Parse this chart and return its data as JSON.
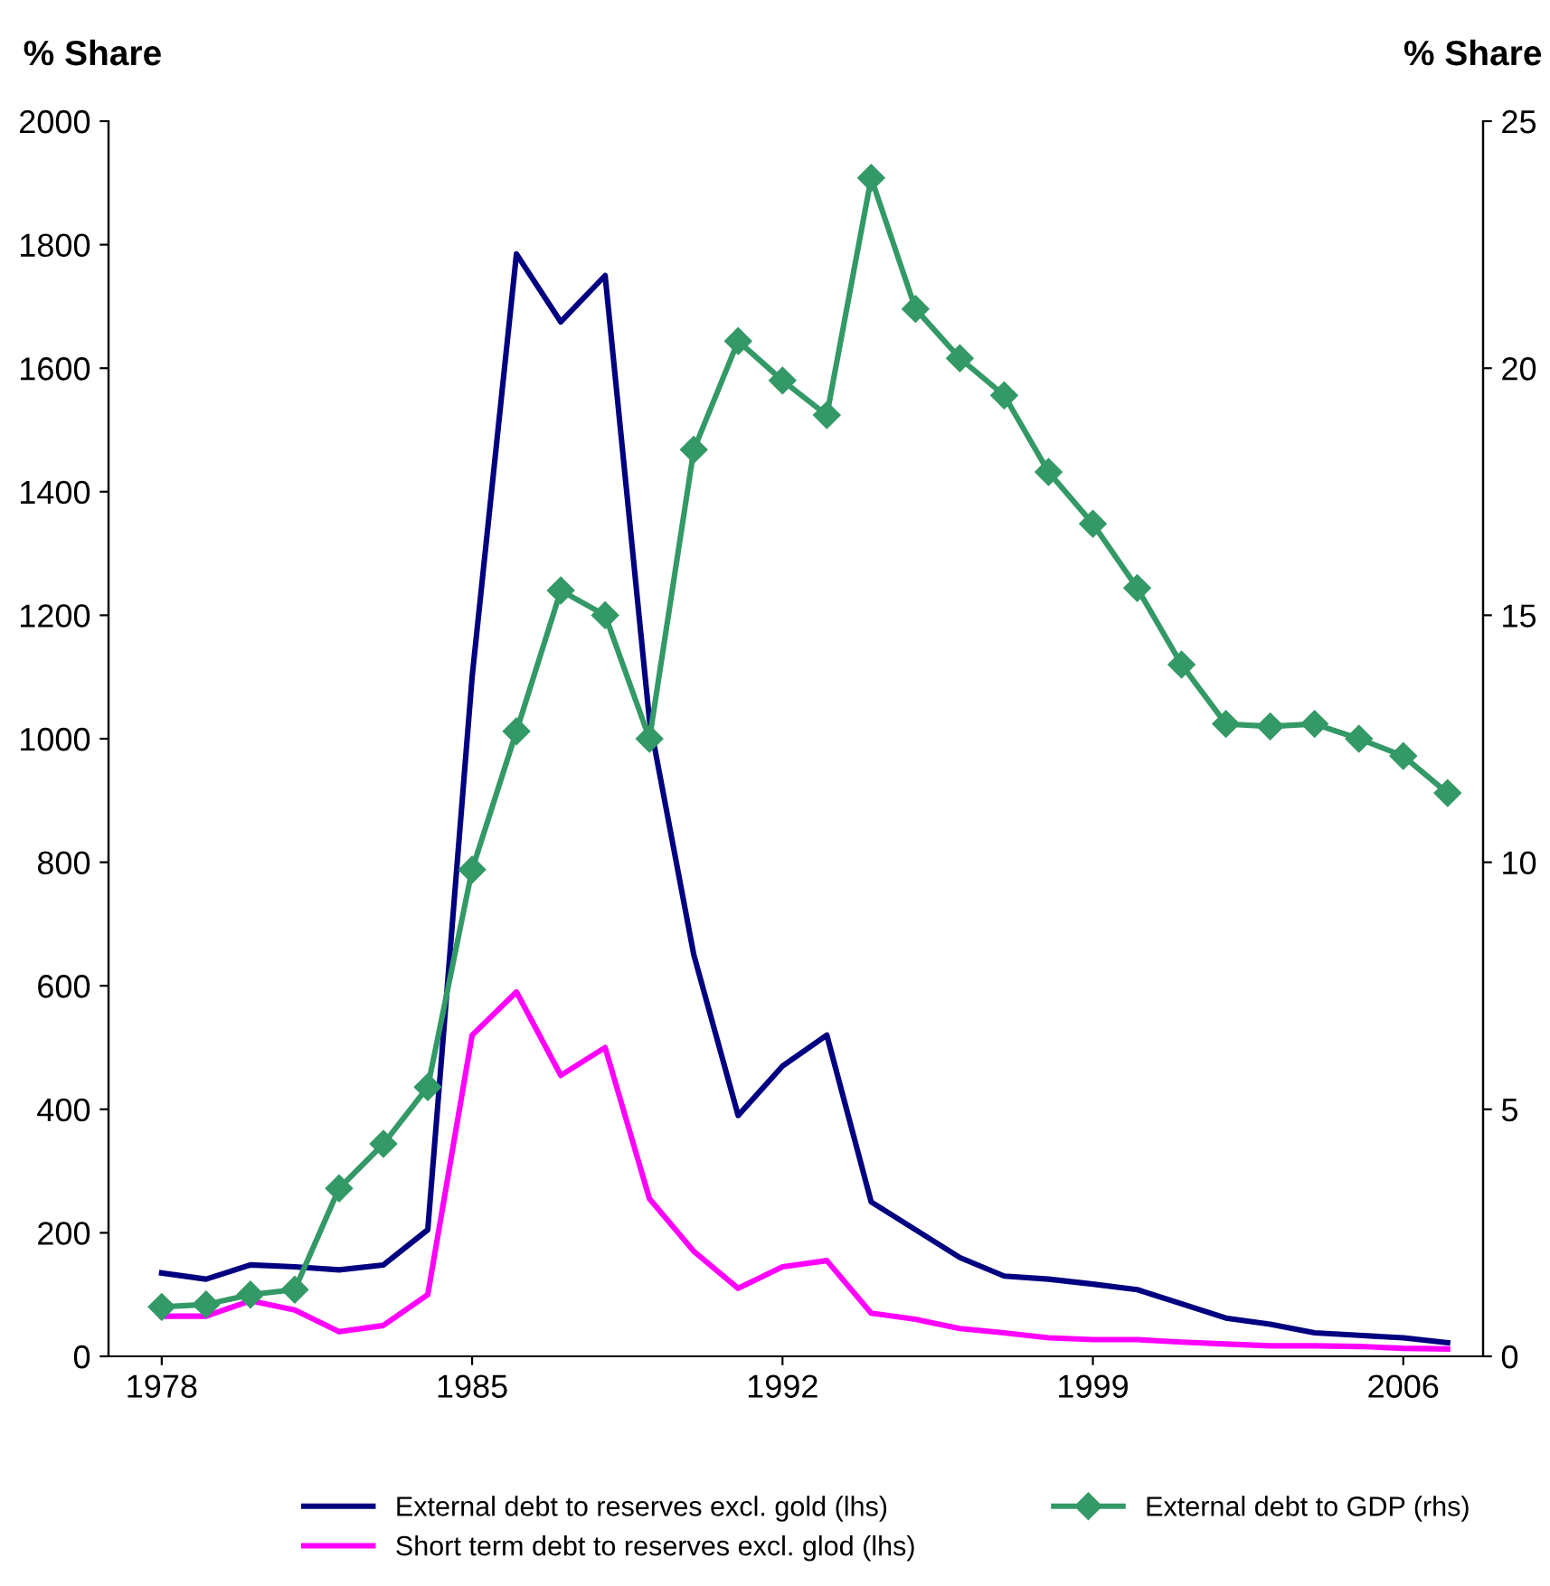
{
  "chart_data": {
    "type": "line",
    "ylabel": "% Share",
    "y2label": "% Share",
    "x": [
      1978,
      1979,
      1980,
      1981,
      1982,
      1983,
      1984,
      1985,
      1986,
      1987,
      1988,
      1989,
      1990,
      1991,
      1992,
      1993,
      1994,
      1995,
      1996,
      1997,
      1998,
      1999,
      2000,
      2001,
      2002,
      2003,
      2004,
      2005,
      2006,
      2007
    ],
    "xlim": [
      1976.8,
      2007.8
    ],
    "xticks": [
      1978,
      1985,
      1992,
      1999,
      2006
    ],
    "ylim": [
      0,
      2000
    ],
    "yticks": [
      0,
      200,
      400,
      600,
      800,
      1000,
      1200,
      1400,
      1600,
      1800,
      2000
    ],
    "y2lim": [
      0,
      25
    ],
    "y2ticks": [
      0,
      5,
      10,
      15,
      20,
      25
    ],
    "grid": false,
    "legend": "bottom",
    "line_style": "solid",
    "series": [
      {
        "name": "External debt to reserves excl. gold (lhs)",
        "color": "#000080",
        "marker": "none",
        "values": [
          135,
          125,
          148,
          145,
          140,
          148,
          205,
          1100,
          1785,
          1675,
          1750,
          1030,
          650,
          390,
          470,
          520,
          250,
          205,
          160,
          130,
          125,
          117,
          108,
          85,
          62,
          52,
          38,
          34,
          30,
          22
        ]
      },
      {
        "name": "Short term debt to reserves excl. glod (lhs)",
        "color": "#ff00ff",
        "marker": "none",
        "values": [
          65,
          65,
          90,
          75,
          40,
          50,
          100,
          520,
          590,
          455,
          500,
          255,
          170,
          110,
          145,
          155,
          70,
          60,
          45,
          38,
          30,
          27,
          27,
          23,
          20,
          17,
          17,
          16,
          13,
          12
        ]
      },
      {
        "name": "External debt to GDP (rhs)",
        "color": "#339966",
        "marker": "diamond",
        "axis": "y2",
        "values": [
          1.0,
          1.05,
          1.25,
          1.35,
          3.4,
          4.3,
          5.45,
          9.85,
          12.65,
          15.5,
          15.0,
          12.5,
          18.35,
          20.55,
          19.75,
          19.05,
          23.85,
          21.2,
          20.2,
          19.45,
          17.9,
          16.85,
          15.55,
          14.0,
          12.8,
          12.75,
          12.8,
          12.5,
          12.15,
          11.4
        ]
      }
    ]
  }
}
